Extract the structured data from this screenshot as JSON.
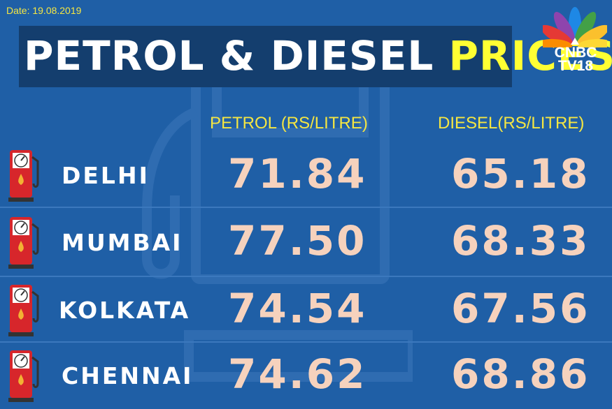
{
  "date": "Date: 19.08.2019",
  "title": {
    "main": "PETROL & DIESEL ",
    "highlight": "PRICES"
  },
  "logo": {
    "line1": "CNBC",
    "line2": "TV18"
  },
  "columns": {
    "petrol": "PETROL (RS/LITRE)",
    "diesel": "DIESEL(RS/LITRE)"
  },
  "rows": [
    {
      "city": "DELHI",
      "petrol": "71.84",
      "diesel": "65.18"
    },
    {
      "city": "MUMBAI",
      "petrol": "77.50",
      "diesel": "68.33"
    },
    {
      "city": "KOLKATA",
      "petrol": "74.54",
      "diesel": "67.56"
    },
    {
      "city": "CHENNAI",
      "petrol": "74.62",
      "diesel": "68.86"
    }
  ],
  "colors": {
    "background": "#1f5fa6",
    "title_bar": "#143e6e",
    "highlight": "#ffff33",
    "price": "#f6d2bd",
    "pump_red": "#d7262b"
  }
}
